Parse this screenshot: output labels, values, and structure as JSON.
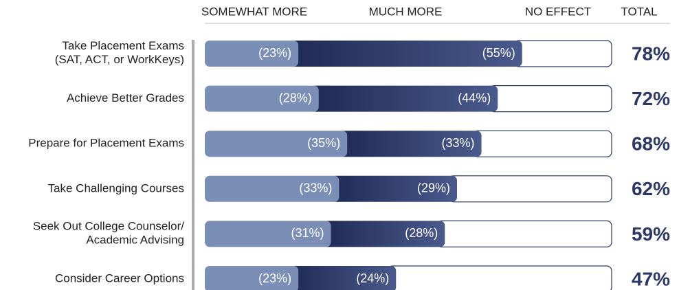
{
  "chart_data": {
    "type": "stacked-bar",
    "categories": [
      "Take Placement Exams\n(SAT, ACT, or WorkKeys)",
      "Achieve Better Grades",
      "Prepare for Placement Exams",
      "Take Challenging Courses",
      "Seek Out College Counselor/\nAcademic Advising",
      "Consider Career Options"
    ],
    "xlim": [
      0,
      100
    ],
    "series": [
      {
        "name": "SOMEWHAT MORE",
        "color": "#7b8fb6",
        "values": [
          23,
          28,
          35,
          33,
          31,
          23
        ],
        "value_labels": [
          "(23%)",
          "(28%)",
          "(35%)",
          "(33%)",
          "(31%)",
          "(23%)"
        ]
      },
      {
        "name": "MUCH MORE",
        "color": "#2b3866",
        "values": [
          55,
          44,
          33,
          29,
          28,
          24
        ],
        "value_labels": [
          "(55%)",
          "(44%)",
          "(33%)",
          "(29%)",
          "(28%)",
          "(24%)"
        ]
      },
      {
        "name": "NO EFFECT",
        "color": "#ffffff",
        "values": [
          22,
          28,
          32,
          38,
          41,
          53
        ]
      }
    ],
    "totals": {
      "name": "TOTAL",
      "values": [
        78,
        72,
        68,
        62,
        59,
        47
      ],
      "value_labels": [
        "78%",
        "72%",
        "68%",
        "62%",
        "59%",
        "47%"
      ]
    }
  }
}
